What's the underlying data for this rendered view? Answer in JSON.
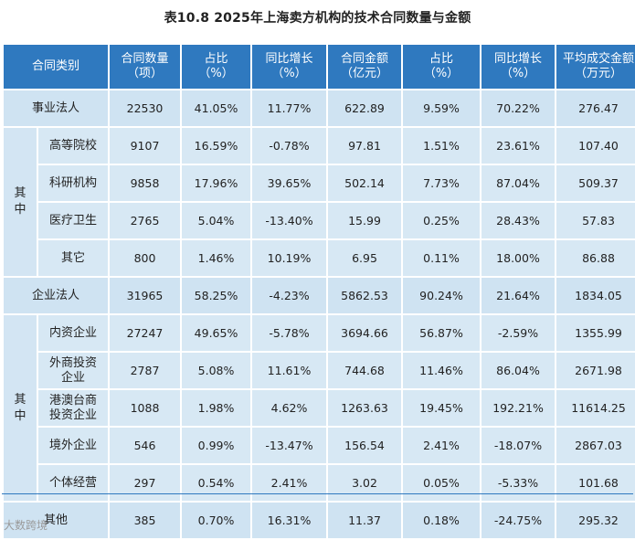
{
  "title": "表10.8   2025年上海卖方机构的技术合同数量与金额",
  "headers": [
    "合同类别",
    "合同数量\n（项）",
    "占比\n（%）",
    "同比增长\n（%）",
    "合同金额\n（亿元）",
    "占比\n（%）",
    "同比增长\n（%）",
    "平均成交金额\n（万元）"
  ],
  "group_label": "其\n中",
  "rows": [
    {
      "label": "事业法人",
      "values": [
        "22530",
        "41.05%",
        "11.77%",
        "622.89",
        "9.59%",
        "70.22%",
        "276.47"
      ]
    },
    {
      "label": "高等院校",
      "values": [
        "9107",
        "16.59%",
        "-0.78%",
        "97.81",
        "1.51%",
        "23.61%",
        "107.40"
      ]
    },
    {
      "label": "科研机构",
      "values": [
        "9858",
        "17.96%",
        "39.65%",
        "502.14",
        "7.73%",
        "87.04%",
        "509.37"
      ]
    },
    {
      "label": "医疗卫生",
      "values": [
        "2765",
        "5.04%",
        "-13.40%",
        "15.99",
        "0.25%",
        "28.43%",
        "57.83"
      ]
    },
    {
      "label": "其它",
      "values": [
        "800",
        "1.46%",
        "10.19%",
        "6.95",
        "0.11%",
        "18.00%",
        "86.88"
      ]
    },
    {
      "label": "企业法人",
      "values": [
        "31965",
        "58.25%",
        "-4.23%",
        "5862.53",
        "90.24%",
        "21.64%",
        "1834.05"
      ]
    },
    {
      "label": "内资企业",
      "values": [
        "27247",
        "49.65%",
        "-5.78%",
        "3694.66",
        "56.87%",
        "-2.59%",
        "1355.99"
      ]
    },
    {
      "label": "外商投资\n企业",
      "values": [
        "2787",
        "5.08%",
        "11.61%",
        "744.68",
        "11.46%",
        "86.04%",
        "2671.98"
      ]
    },
    {
      "label": "港澳台商\n投资企业",
      "values": [
        "1088",
        "1.98%",
        "4.62%",
        "1263.63",
        "19.45%",
        "192.21%",
        "11614.25"
      ]
    },
    {
      "label": "境外企业",
      "values": [
        "546",
        "0.99%",
        "-13.47%",
        "156.54",
        "2.41%",
        "-18.07%",
        "2867.03"
      ]
    },
    {
      "label": "个体经营",
      "values": [
        "297",
        "0.54%",
        "2.41%",
        "3.02",
        "0.05%",
        "-5.33%",
        "101.68"
      ]
    },
    {
      "label": "其他",
      "values": [
        "385",
        "0.70%",
        "16.31%",
        "11.37",
        "0.18%",
        "-24.75%",
        "295.32"
      ]
    }
  ],
  "watermark": "大数跨境"
}
